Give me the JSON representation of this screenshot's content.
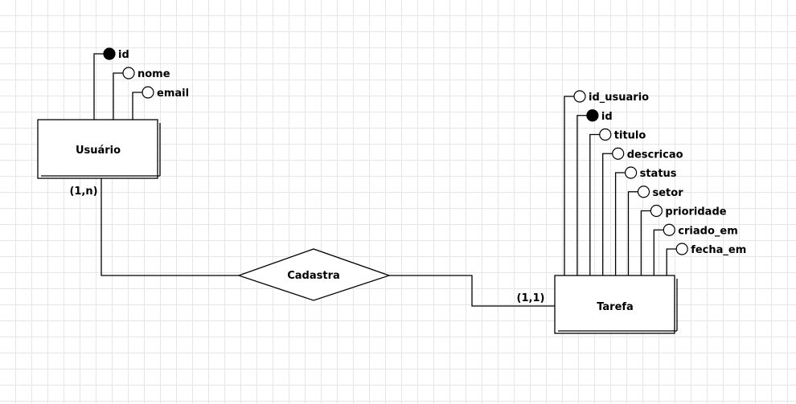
{
  "entities": {
    "usuario": {
      "name": "Usuário",
      "attributes": [
        {
          "name": "id",
          "key": true
        },
        {
          "name": "nome",
          "key": false
        },
        {
          "name": "email",
          "key": false
        }
      ]
    },
    "tarefa": {
      "name": "Tarefa",
      "attributes": [
        {
          "name": "id_usuario",
          "key": false
        },
        {
          "name": "id",
          "key": true
        },
        {
          "name": "titulo",
          "key": false
        },
        {
          "name": "descricao",
          "key": false
        },
        {
          "name": "status",
          "key": false
        },
        {
          "name": "setor",
          "key": false
        },
        {
          "name": "prioridade",
          "key": false
        },
        {
          "name": "criado_em",
          "key": false
        },
        {
          "name": "fecha_em",
          "key": false
        }
      ]
    }
  },
  "relationship": {
    "name": "Cadastra",
    "card_usuario": "(1,n)",
    "card_tarefa": "(1,1)"
  },
  "colors": {
    "line": "#000000",
    "key_fill": "#000000",
    "attr_fill": "#ffffff",
    "grid": "#e6e6e6"
  }
}
